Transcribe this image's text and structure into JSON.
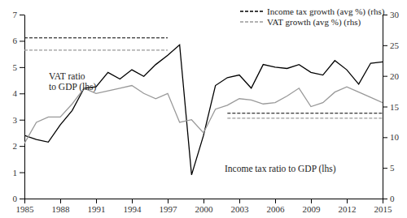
{
  "chart_data": {
    "type": "line",
    "x": [
      1985,
      1986,
      1987,
      1988,
      1989,
      1990,
      1991,
      1992,
      1993,
      1994,
      1995,
      1996,
      1997,
      1998,
      1999,
      2000,
      2001,
      2002,
      2003,
      2004,
      2005,
      2006,
      2007,
      2008,
      2009,
      2010,
      2011,
      2012,
      2013,
      2014,
      2015
    ],
    "xlim": [
      1985,
      2015
    ],
    "xticks": [
      1985,
      1988,
      1991,
      1994,
      1997,
      2000,
      2003,
      2006,
      2009,
      2012,
      2015
    ],
    "ylim": [
      0,
      7
    ],
    "yticks": [
      0,
      1,
      2,
      3,
      4,
      5,
      6,
      7
    ],
    "y2lim": [
      0,
      30
    ],
    "y2ticks": [
      0,
      5,
      10,
      15,
      20,
      25,
      30
    ],
    "legend": "upper right",
    "series": [
      {
        "color": "#000000",
        "line_style": "solid",
        "values": [
          2.4,
          2.25,
          2.15,
          2.8,
          3.35,
          4.2,
          4.25,
          4.8,
          4.55,
          4.9,
          4.65,
          5.1,
          5.45,
          5.85,
          0.9,
          2.4,
          4.3,
          4.6,
          4.7,
          4.2,
          5.1,
          5.0,
          4.95,
          5.1,
          4.8,
          4.7,
          5.25,
          4.9,
          4.35,
          5.15,
          5.2
        ]
      },
      {
        "color": "#999999",
        "line_style": "solid",
        "values": [
          2.1,
          2.9,
          3.1,
          3.1,
          3.6,
          4.2,
          4.0,
          4.1,
          4.2,
          4.3,
          4.0,
          3.8,
          4.0,
          2.9,
          3.0,
          2.5,
          3.4,
          3.55,
          3.8,
          3.75,
          3.6,
          3.65,
          3.9,
          4.2,
          3.5,
          3.65,
          4.05,
          4.25,
          4.05,
          3.85,
          3.65
        ]
      },
      {
        "name": "Income tax growth (avg %) (rhs)",
        "color": "#000000",
        "line_style": "dashed",
        "axis": "y2",
        "values": [
          26.2,
          26.2,
          26.2,
          26.2,
          26.2,
          26.2,
          26.2,
          26.2,
          26.2,
          26.2,
          26.2,
          26.2,
          26.2,
          null,
          null,
          null,
          null,
          13.9,
          13.9,
          13.9,
          13.9,
          13.9,
          13.9,
          13.9,
          13.9,
          13.9,
          13.9,
          13.9,
          13.9,
          13.9,
          13.9
        ]
      },
      {
        "name": "VAT growth (avg %) (rhs)",
        "color": "#999999",
        "line_style": "dashed",
        "axis": "y2",
        "values": [
          24.2,
          24.2,
          24.2,
          24.2,
          24.2,
          24.2,
          24.2,
          24.2,
          24.2,
          24.2,
          24.2,
          24.2,
          24.2,
          null,
          null,
          null,
          null,
          13.1,
          13.1,
          13.1,
          13.1,
          13.1,
          13.1,
          13.1,
          13.1,
          13.1,
          13.1,
          13.1,
          13.1,
          13.1,
          13.1
        ]
      }
    ],
    "annotations": [
      {
        "lines": [
          "VAT ratio",
          "to GDP (lhs)"
        ]
      },
      {
        "lines": [
          "Income tax ratio to GDP (lhs)"
        ]
      }
    ]
  }
}
